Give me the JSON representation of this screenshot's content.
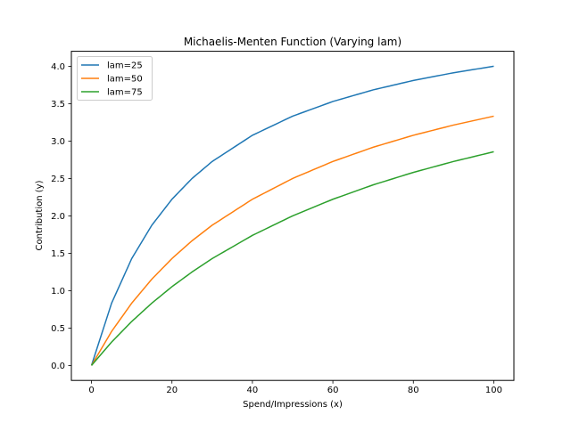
{
  "chart_data": {
    "type": "line",
    "title": "Michaelis-Menten Function (Varying lam)",
    "xlabel": "Spend/Impressions (x)",
    "ylabel": "Contribution (y)",
    "xlim": [
      -5,
      105
    ],
    "ylim": [
      -0.2,
      4.2
    ],
    "xticks": [
      0,
      20,
      40,
      60,
      80,
      100
    ],
    "xtick_labels": [
      "0",
      "20",
      "40",
      "60",
      "80",
      "100"
    ],
    "yticks": [
      0.0,
      0.5,
      1.0,
      1.5,
      2.0,
      2.5,
      3.0,
      3.5,
      4.0
    ],
    "ytick_labels": [
      "0.0",
      "0.5",
      "1.0",
      "1.5",
      "2.0",
      "2.5",
      "3.0",
      "3.5",
      "4.0"
    ],
    "grid": false,
    "legend_position": "upper left",
    "x": [
      0,
      5,
      10,
      15,
      20,
      25,
      30,
      40,
      50,
      60,
      70,
      80,
      90,
      100
    ],
    "series": [
      {
        "name": "lam=25",
        "color": "#1f77b4",
        "values": [
          0.0,
          0.833,
          1.429,
          1.875,
          2.222,
          2.5,
          2.727,
          3.077,
          3.333,
          3.529,
          3.684,
          3.81,
          3.913,
          4.0
        ]
      },
      {
        "name": "lam=50",
        "color": "#ff7f0e",
        "values": [
          0.0,
          0.455,
          0.833,
          1.154,
          1.429,
          1.667,
          1.875,
          2.222,
          2.5,
          2.727,
          2.917,
          3.077,
          3.214,
          3.333
        ]
      },
      {
        "name": "lam=75",
        "color": "#2ca02c",
        "values": [
          0.0,
          0.313,
          0.588,
          0.833,
          1.053,
          1.25,
          1.429,
          1.739,
          2.0,
          2.222,
          2.414,
          2.581,
          2.727,
          2.857
        ]
      }
    ]
  }
}
